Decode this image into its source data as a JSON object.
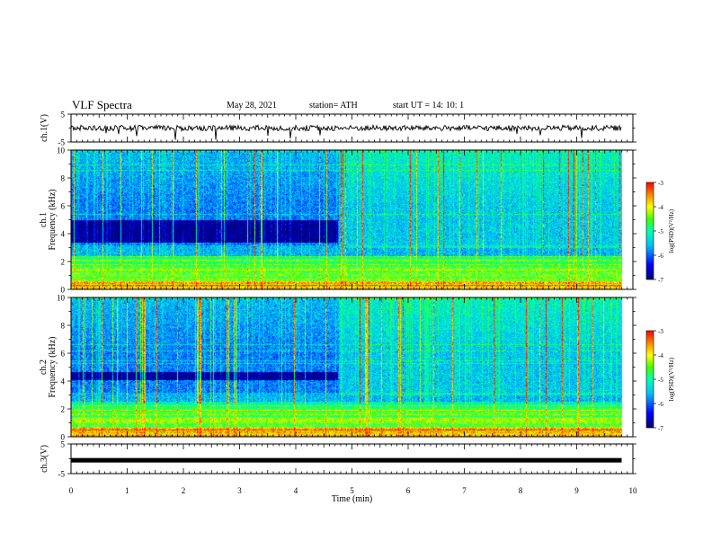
{
  "header": {
    "title": "VLF Spectra",
    "date": "May 28, 2021",
    "station": "station= ATH",
    "start": "start  UT =   14: 10: 1"
  },
  "chart_data": [
    {
      "type": "line",
      "name": "ch1-waveform",
      "ylabel": "ch.1(V)",
      "ylim": [
        -5,
        5
      ],
      "yticks": [
        "5",
        "-5"
      ],
      "xlim": [
        0,
        10
      ],
      "data_end_min": 9.8,
      "baseline_v": 0,
      "noise_amplitude_v": 1.0
    },
    {
      "type": "heatmap",
      "name": "ch1-spectrogram",
      "ylabel_top": "ch.1",
      "ylabel": "Frequency (kHz)",
      "ylim": [
        0,
        10
      ],
      "yticks": [
        "0",
        "2",
        "4",
        "6",
        "8",
        "10"
      ],
      "xlim": [
        0,
        10
      ],
      "data_end_min": 9.8,
      "quiet_band_khz": [
        3.4,
        5.0
      ],
      "quiet_until_min": 4.75,
      "colorbar": {
        "label": "log(PSD)(V²/Hz)",
        "range": [
          -7,
          -3
        ],
        "ticks": [
          "-3",
          "-4",
          "-5",
          "-6",
          "-7"
        ]
      }
    },
    {
      "type": "heatmap",
      "name": "ch2-spectrogram",
      "ylabel_top": "ch.2",
      "ylabel": "Frequency (kHz)",
      "ylim": [
        0,
        10
      ],
      "yticks": [
        "0",
        "2",
        "4",
        "6",
        "8",
        "10"
      ],
      "xlim": [
        0,
        10
      ],
      "data_end_min": 9.8,
      "quiet_band_khz": [
        4.1,
        4.7
      ],
      "quiet_until_min": 4.75,
      "colorbar": {
        "label": "log(PSD)(V²/Hz)",
        "range": [
          -7,
          -3
        ],
        "ticks": [
          "-3",
          "-4",
          "-5",
          "-6",
          "-7"
        ]
      }
    },
    {
      "type": "line",
      "name": "ch3-waveform",
      "ylabel": "ch.3(V)",
      "ylim": [
        -5,
        5
      ],
      "yticks": [
        "5",
        "-5"
      ],
      "xlim": [
        0,
        10
      ],
      "data_end_min": 9.8,
      "baseline_v": -0.5,
      "noise_amplitude_v": 0.4
    }
  ],
  "xaxis": {
    "label": "Time  (min)",
    "ticks": [
      "0",
      "1",
      "2",
      "3",
      "4",
      "5",
      "6",
      "7",
      "8",
      "9",
      "10"
    ]
  },
  "colors": {
    "colormap": [
      "#000070",
      "#0000ff",
      "#00c0ff",
      "#00ffb0",
      "#40ff00",
      "#ffff00",
      "#ff8000",
      "#ff0000"
    ]
  }
}
